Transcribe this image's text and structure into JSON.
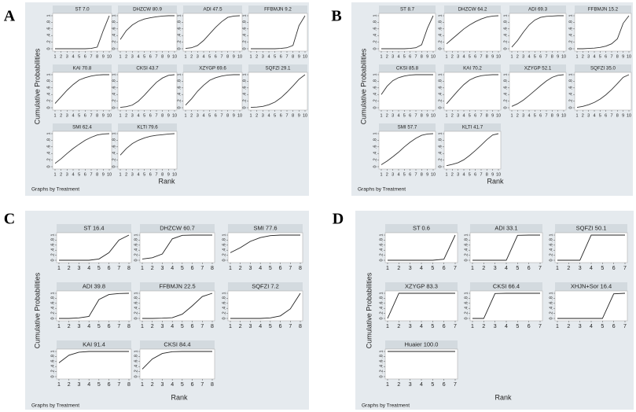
{
  "chart_data": [
    {
      "type": "line",
      "label": "A",
      "y_label": "Cumulative Probabilities",
      "x_label": "Rank",
      "note": "Graphs by Treatment",
      "x": [
        1,
        2,
        3,
        4,
        5,
        6,
        7,
        8,
        9,
        10
      ],
      "xlim": [
        1,
        10
      ],
      "ylim": [
        0,
        1
      ],
      "xticks": [
        1,
        2,
        3,
        4,
        5,
        6,
        7,
        8,
        9,
        10
      ],
      "yticks": [
        0,
        {
          "value": 0.2,
          "label": ".2"
        },
        {
          "value": 0.4,
          "label": ".4"
        },
        {
          "value": 0.6,
          "label": ".6"
        },
        {
          "value": 0.8,
          "label": ".8"
        },
        1
      ],
      "color": "#333333",
      "series": [
        {
          "name": "ST 7.0",
          "values": [
            0,
            0,
            0,
            0,
            0,
            0,
            0.01,
            0.05,
            0.55,
            1
          ]
        },
        {
          "name": "DHZCW 80.9",
          "values": [
            0.28,
            0.55,
            0.72,
            0.83,
            0.9,
            0.94,
            0.97,
            0.99,
            1,
            1
          ]
        },
        {
          "name": "ADI 47.5",
          "values": [
            0.01,
            0.03,
            0.1,
            0.25,
            0.45,
            0.65,
            0.82,
            0.95,
            0.99,
            1
          ]
        },
        {
          "name": "FFBMJN 9.2",
          "values": [
            0,
            0,
            0,
            0,
            0,
            0.01,
            0.03,
            0.1,
            0.7,
            1
          ]
        },
        {
          "name": "KAI 70.8",
          "values": [
            0.13,
            0.33,
            0.53,
            0.7,
            0.84,
            0.91,
            0.96,
            0.99,
            1,
            1
          ]
        },
        {
          "name": "CKSI 43.7",
          "values": [
            0.01,
            0.03,
            0.08,
            0.2,
            0.38,
            0.58,
            0.77,
            0.9,
            0.98,
            1
          ]
        },
        {
          "name": "XZYGP 69.6",
          "values": [
            0.08,
            0.27,
            0.5,
            0.68,
            0.83,
            0.91,
            0.96,
            0.99,
            1,
            1
          ]
        },
        {
          "name": "SQFZI 29.1",
          "values": [
            0.01,
            0.02,
            0.04,
            0.09,
            0.17,
            0.3,
            0.47,
            0.66,
            0.86,
            1
          ]
        },
        {
          "name": "SMI  62.4",
          "values": [
            0.1,
            0.24,
            0.4,
            0.55,
            0.68,
            0.8,
            0.89,
            0.96,
            0.99,
            1
          ]
        },
        {
          "name": "KLTI 79.6",
          "values": [
            0.35,
            0.55,
            0.7,
            0.8,
            0.87,
            0.92,
            0.95,
            0.97,
            0.99,
            1
          ]
        }
      ]
    },
    {
      "type": "line",
      "label": "B",
      "y_label": "Cumulative Probabilities",
      "x_label": "Rank",
      "note": "Graphs by Treatment",
      "x": [
        1,
        2,
        3,
        4,
        5,
        6,
        7,
        8,
        9,
        10
      ],
      "xlim": [
        1,
        10
      ],
      "ylim": [
        0,
        1
      ],
      "xticks": [
        1,
        2,
        3,
        4,
        5,
        6,
        7,
        8,
        9,
        10
      ],
      "yticks": [
        0,
        {
          "value": 0.2,
          "label": ".2"
        },
        {
          "value": 0.4,
          "label": ".4"
        },
        {
          "value": 0.6,
          "label": ".6"
        },
        {
          "value": 0.8,
          "label": ".8"
        },
        1
      ],
      "color": "#333333",
      "series": [
        {
          "name": "ST 8.7",
          "values": [
            0,
            0,
            0,
            0,
            0,
            0.01,
            0.03,
            0.12,
            0.62,
            1
          ]
        },
        {
          "name": "DHZCW 64.2",
          "values": [
            0.15,
            0.3,
            0.45,
            0.6,
            0.72,
            0.82,
            0.9,
            0.96,
            0.99,
            1
          ]
        },
        {
          "name": "ADI 69.3",
          "values": [
            0.05,
            0.25,
            0.5,
            0.72,
            0.87,
            0.95,
            0.98,
            0.99,
            1,
            1
          ]
        },
        {
          "name": "FFBMJN 15.2",
          "values": [
            0,
            0,
            0.01,
            0.02,
            0.04,
            0.08,
            0.15,
            0.3,
            0.77,
            1
          ]
        },
        {
          "name": "CKSI 85.8",
          "values": [
            0.4,
            0.65,
            0.82,
            0.91,
            0.96,
            0.99,
            1,
            1,
            1,
            1
          ]
        },
        {
          "name": "KAI 70.2",
          "values": [
            0.12,
            0.32,
            0.52,
            0.7,
            0.84,
            0.92,
            0.97,
            0.99,
            1,
            1
          ]
        },
        {
          "name": "XZYGP 52.1",
          "values": [
            0.04,
            0.12,
            0.23,
            0.37,
            0.52,
            0.67,
            0.81,
            0.92,
            0.98,
            1
          ]
        },
        {
          "name": "SQFZI 35.0",
          "values": [
            0.01,
            0.04,
            0.09,
            0.16,
            0.26,
            0.39,
            0.55,
            0.73,
            0.92,
            1
          ]
        },
        {
          "name": "SMI 57.7",
          "values": [
            0.06,
            0.17,
            0.3,
            0.44,
            0.6,
            0.74,
            0.86,
            0.95,
            0.99,
            1
          ]
        },
        {
          "name": "KLTI 41.7",
          "values": [
            0.03,
            0.07,
            0.12,
            0.21,
            0.34,
            0.49,
            0.65,
            0.82,
            0.96,
            1
          ]
        }
      ]
    },
    {
      "type": "line",
      "label": "C",
      "y_label": "Cumulative Probabilities",
      "x_label": "Rank",
      "note": "Graphs by Treatment",
      "x": [
        1,
        2,
        3,
        4,
        5,
        6,
        7,
        8
      ],
      "xlim": [
        1,
        8
      ],
      "ylim": [
        0,
        1
      ],
      "xticks": [
        1,
        2,
        3,
        4,
        5,
        6,
        7,
        8
      ],
      "yticks": [
        0,
        {
          "value": 0.2,
          "label": ".2"
        },
        {
          "value": 0.4,
          "label": ".4"
        },
        {
          "value": 0.6,
          "label": ".6"
        },
        {
          "value": 0.8,
          "label": ".8"
        },
        1
      ],
      "color": "#222222",
      "series": [
        {
          "name": "ST 16.4",
          "values": [
            0,
            0,
            0,
            0,
            0.05,
            0.3,
            0.8,
            1
          ]
        },
        {
          "name": "DHZCW 60.7",
          "values": [
            0.05,
            0.1,
            0.25,
            0.85,
            0.99,
            1,
            1,
            1
          ]
        },
        {
          "name": "SMI 77.6",
          "values": [
            0.3,
            0.5,
            0.75,
            0.9,
            0.98,
            1,
            1,
            1
          ]
        },
        {
          "name": "ADI 39.8",
          "values": [
            0,
            0,
            0.02,
            0.08,
            0.75,
            0.95,
            0.99,
            1
          ]
        },
        {
          "name": "FFBMJN 22.5",
          "values": [
            0,
            0,
            0.01,
            0.03,
            0.17,
            0.5,
            0.87,
            1
          ]
        },
        {
          "name": "SQFZI 7.2",
          "values": [
            0,
            0,
            0,
            0,
            0.02,
            0.1,
            0.38,
            1
          ]
        },
        {
          "name": "KAI 91.4",
          "values": [
            0.55,
            0.85,
            0.97,
            1,
            1,
            1,
            1,
            1
          ]
        },
        {
          "name": "CKSI 84.4",
          "values": [
            0.3,
            0.7,
            0.92,
            0.99,
            1,
            1,
            1,
            1
          ]
        }
      ]
    },
    {
      "type": "line",
      "label": "D",
      "y_label": "Cumulative Probabilities",
      "x_label": "Rank",
      "note": "Graphs by Treatment",
      "x": [
        1,
        2,
        3,
        4,
        5,
        6,
        7
      ],
      "xlim": [
        1,
        7
      ],
      "ylim": [
        0,
        1
      ],
      "xticks": [
        1,
        2,
        3,
        4,
        5,
        6,
        7
      ],
      "yticks": [
        0,
        {
          "value": 0.2,
          "label": ".2"
        },
        {
          "value": 0.4,
          "label": ".4"
        },
        {
          "value": 0.6,
          "label": ".6"
        },
        {
          "value": 0.8,
          "label": ".8"
        },
        1
      ],
      "color": "#222222",
      "series": [
        {
          "name": "ST 0.6",
          "values": [
            0,
            0,
            0,
            0,
            0,
            0.04,
            1
          ]
        },
        {
          "name": "ADI 33.1",
          "values": [
            0,
            0,
            0,
            0,
            0.99,
            1,
            1
          ]
        },
        {
          "name": "SQFZI 50.1",
          "values": [
            0,
            0,
            0,
            1,
            1,
            1,
            1
          ]
        },
        {
          "name": "XZYGP 83.3",
          "values": [
            0,
            1,
            1,
            1,
            1,
            1,
            1
          ]
        },
        {
          "name": "CKSI 66.4",
          "values": [
            0,
            0,
            0.99,
            1,
            1,
            1,
            1
          ]
        },
        {
          "name": "XHJN+Sor 16.4",
          "values": [
            0,
            0,
            0,
            0,
            0,
            0.98,
            1
          ]
        },
        {
          "name": "Huaier 100.0",
          "values": [
            1,
            1,
            1,
            1,
            1,
            1,
            1
          ]
        }
      ]
    }
  ]
}
